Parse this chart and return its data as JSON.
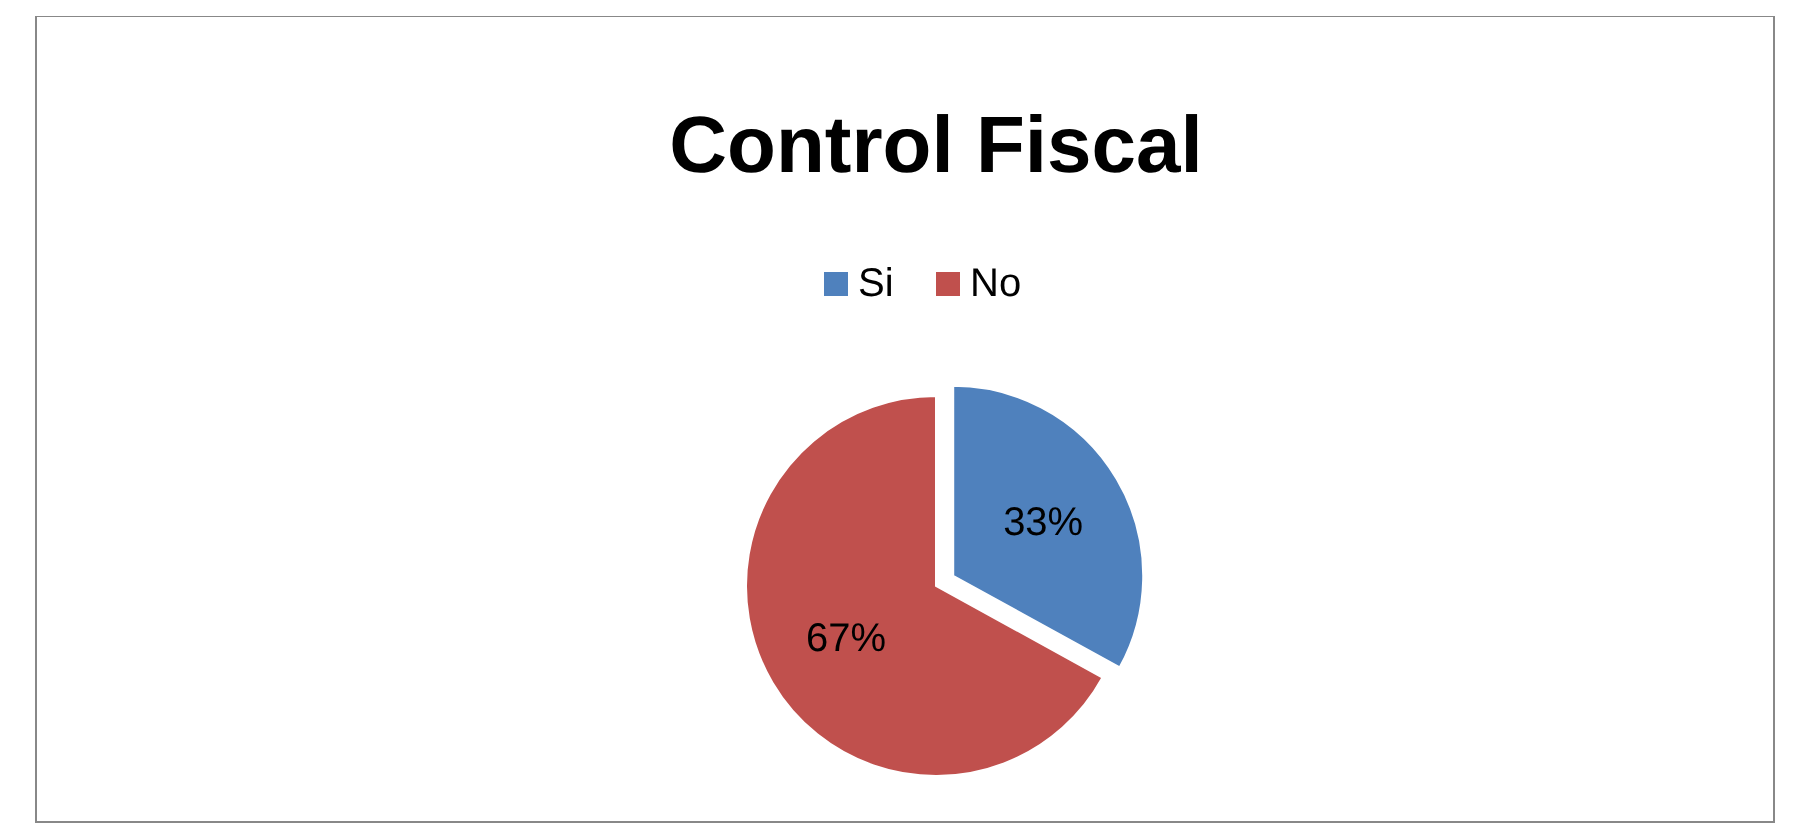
{
  "chart_data": {
    "type": "pie",
    "title": "Control Fiscal",
    "categories": [
      "Si",
      "No"
    ],
    "values": [
      33,
      67
    ],
    "colors": [
      "#4f81bd",
      "#c0504d"
    ],
    "value_labels": [
      "33%",
      "67%"
    ],
    "legend": "top"
  }
}
